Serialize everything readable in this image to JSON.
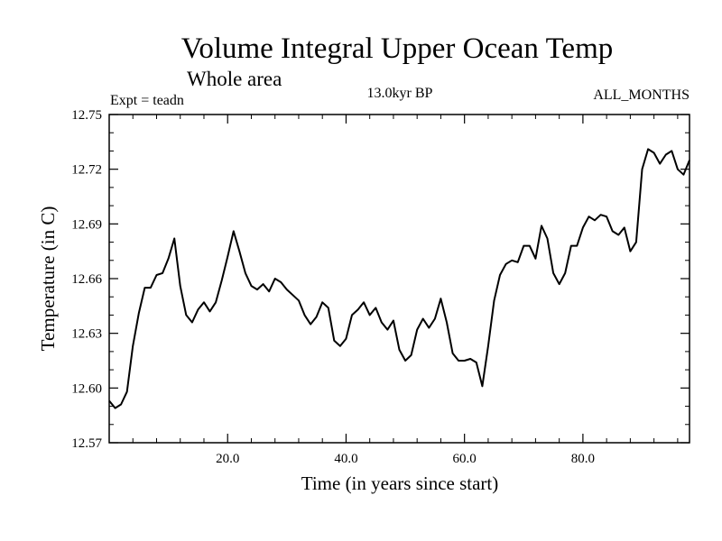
{
  "chart_data": {
    "type": "line",
    "title": "Volume Integral Upper Ocean Temp",
    "subtitle": "Whole area",
    "annotations": {
      "left": "Expt = teadn",
      "center": "13.0kyr BP",
      "right": "ALL_MONTHS"
    },
    "xlabel": "Time (in years since start)",
    "ylabel": "Temperature (in C)",
    "xlim": [
      0,
      98
    ],
    "ylim": [
      12.57,
      12.75
    ],
    "x_ticks": [
      20,
      40,
      60,
      80
    ],
    "x_tick_labels": [
      "20.0",
      "40.0",
      "60.0",
      "80.0"
    ],
    "y_ticks": [
      12.57,
      12.6,
      12.63,
      12.66,
      12.69,
      12.72,
      12.75
    ],
    "y_tick_labels": [
      "12.57",
      "12.60",
      "12.63",
      "12.66",
      "12.69",
      "12.72",
      "12.75"
    ],
    "grid": false,
    "series": [
      {
        "name": "Temperature",
        "x": [
          0,
          1,
          2,
          3,
          4,
          5,
          6,
          7,
          8,
          9,
          10,
          11,
          12,
          13,
          14,
          15,
          16,
          17,
          18,
          19,
          20,
          21,
          22,
          23,
          24,
          25,
          26,
          27,
          28,
          29,
          30,
          31,
          32,
          33,
          34,
          35,
          36,
          37,
          38,
          39,
          40,
          41,
          42,
          43,
          44,
          45,
          46,
          47,
          48,
          49,
          50,
          51,
          52,
          53,
          54,
          55,
          56,
          57,
          58,
          59,
          60,
          61,
          62,
          63,
          64,
          65,
          66,
          67,
          68,
          69,
          70,
          71,
          72,
          73,
          74,
          75,
          76,
          77,
          78,
          79,
          80,
          81,
          82,
          83,
          84,
          85,
          86,
          87,
          88,
          89,
          90,
          91,
          92,
          93,
          94,
          95,
          96,
          97,
          98
        ],
        "values": [
          12.593,
          12.589,
          12.591,
          12.598,
          12.623,
          12.641,
          12.655,
          12.655,
          12.662,
          12.663,
          12.671,
          12.682,
          12.656,
          12.64,
          12.636,
          12.643,
          12.647,
          12.642,
          12.647,
          12.659,
          12.672,
          12.686,
          12.675,
          12.663,
          12.656,
          12.654,
          12.657,
          12.653,
          12.66,
          12.658,
          12.654,
          12.651,
          12.648,
          12.64,
          12.635,
          12.639,
          12.647,
          12.644,
          12.626,
          12.623,
          12.627,
          12.64,
          12.643,
          12.647,
          12.64,
          12.644,
          12.636,
          12.632,
          12.637,
          12.621,
          12.615,
          12.618,
          12.632,
          12.638,
          12.633,
          12.638,
          12.649,
          12.636,
          12.619,
          12.615,
          12.615,
          12.616,
          12.614,
          12.601,
          12.623,
          12.648,
          12.662,
          12.668,
          12.67,
          12.669,
          12.678,
          12.678,
          12.671,
          12.689,
          12.682,
          12.663,
          12.657,
          12.663,
          12.678,
          12.678,
          12.688,
          12.694,
          12.692,
          12.695,
          12.694,
          12.686,
          12.684,
          12.688,
          12.675,
          12.68,
          12.72,
          12.731,
          12.729,
          12.723,
          12.728,
          12.73,
          12.72,
          12.717,
          12.725
        ]
      }
    ]
  }
}
